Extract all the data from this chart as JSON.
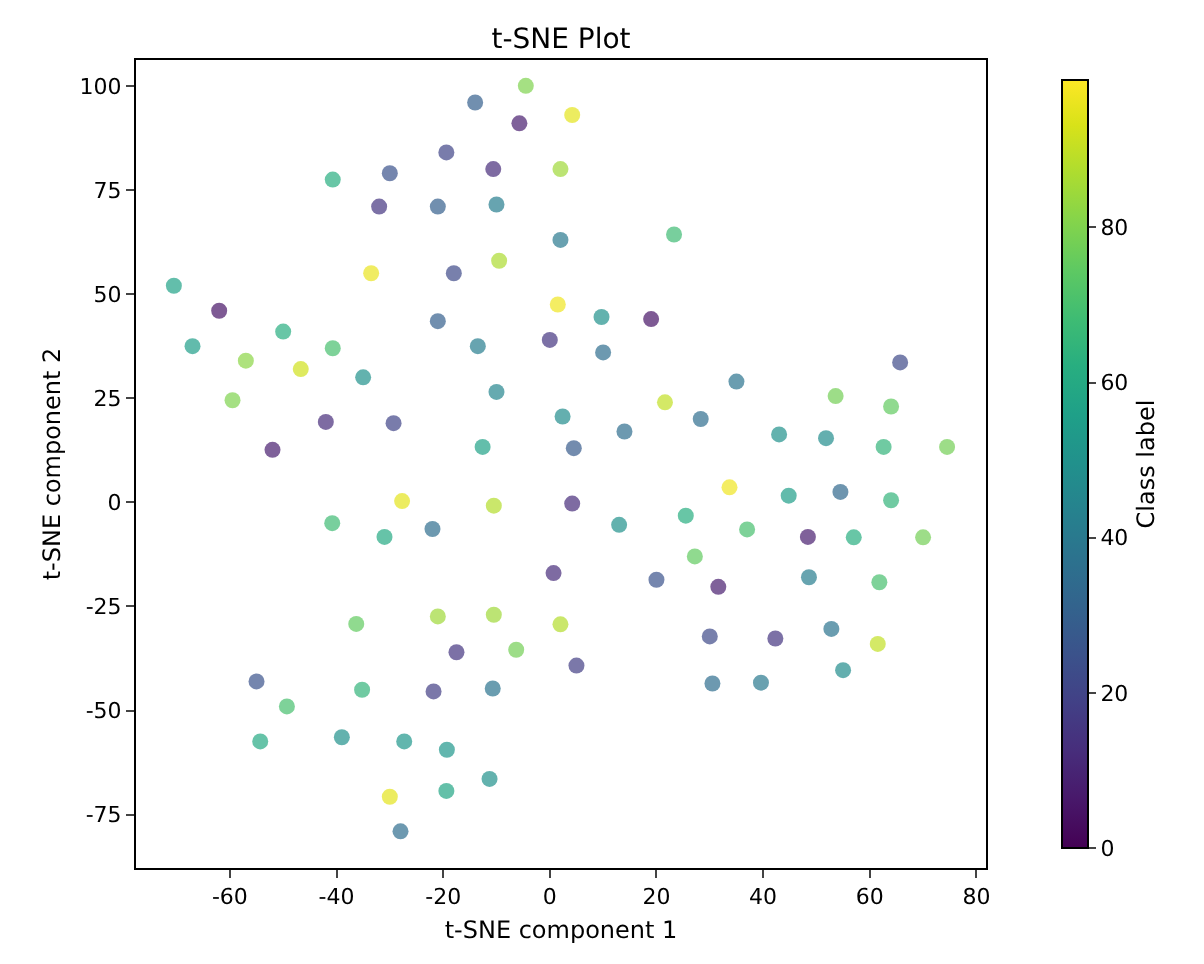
{
  "chart_data": {
    "type": "scatter",
    "title": "t-SNE Plot",
    "xlabel": "t-SNE component 1",
    "ylabel": "t-SNE component 2",
    "clabel": "Class label",
    "marker": "circle",
    "x": [
      -4.5,
      -14,
      -5.7,
      -19.4,
      -10.6,
      -30,
      -40.7,
      2,
      -32,
      -21,
      -10,
      2,
      -33.5,
      -18,
      -9.5,
      -70.5,
      -62,
      1.5,
      -50,
      -67,
      -40.7,
      -21,
      -13.5,
      0,
      -57,
      -46.7,
      -35,
      -10,
      -59.5,
      -42,
      -29.3,
      -52,
      -12.6,
      2.4,
      4.2,
      23.3,
      9.7,
      19,
      10,
      65.7,
      35,
      53.6,
      64,
      21.6,
      28.3,
      4.5,
      14,
      43,
      51.8,
      62.6,
      74.5,
      33.7,
      44.8,
      54.5,
      64,
      4.2,
      13,
      25.5,
      37,
      48.4,
      57,
      70,
      27.2,
      0.7,
      20,
      31.6,
      48.6,
      61.8,
      2,
      30,
      42.3,
      52.8,
      61.5,
      5,
      30.5,
      39.6,
      55,
      -27.7,
      -10.5,
      -40.8,
      -31,
      -22,
      -36.3,
      -21,
      -10.5,
      -17.5,
      -6.3,
      -55,
      -49.3,
      -35.2,
      -21.8,
      -10.7,
      -54.3,
      -39,
      -27.3,
      -19.3,
      -11.3,
      -19.4,
      -30,
      -28
    ],
    "values": [
      100,
      96,
      91,
      84,
      80,
      79,
      77.5,
      80,
      71,
      71,
      71.5,
      63,
      55,
      55,
      58,
      52,
      46,
      47.5,
      41,
      37.5,
      37,
      43.5,
      37.5,
      39,
      34,
      32,
      30,
      26.5,
      24.5,
      19.3,
      19,
      12.6,
      13.3,
      20.6,
      93,
      64.3,
      44.5,
      44,
      36,
      33.6,
      29,
      25.5,
      23,
      24,
      20,
      13,
      17,
      16.3,
      15.4,
      13.3,
      13.3,
      3.6,
      1.6,
      2.5,
      0.5,
      -0.3,
      -5.4,
      -3.2,
      -6.5,
      -8.3,
      -8.4,
      -8.4,
      -13,
      -17,
      -18.6,
      -20.3,
      -18,
      -19.2,
      -29.3,
      -32.2,
      -32.7,
      -30.4,
      -34,
      -39.2,
      -43.5,
      -43.3,
      -40.3,
      0.3,
      -0.8,
      -5,
      -8.3,
      -6.4,
      -29.2,
      -27.4,
      -27,
      -36,
      -35.4,
      -43,
      -49,
      -45,
      -45.4,
      -44.7,
      -57.4,
      -56.4,
      -57.4,
      -59.4,
      -66.4,
      -69.3,
      -70.7,
      -79
    ],
    "cvalues": [
      80,
      30,
      8,
      20,
      12,
      25,
      62,
      85,
      15,
      30,
      42,
      40,
      96,
      22,
      87,
      57,
      5,
      97,
      62,
      55,
      70,
      30,
      42,
      15,
      82,
      92,
      50,
      45,
      80,
      12,
      20,
      8,
      57,
      48,
      95,
      68,
      50,
      5,
      35,
      22,
      38,
      78,
      75,
      90,
      35,
      28,
      35,
      50,
      48,
      65,
      78,
      97,
      55,
      33,
      65,
      12,
      50,
      62,
      70,
      8,
      62,
      78,
      75,
      12,
      25,
      8,
      42,
      70,
      88,
      22,
      15,
      38,
      90,
      18,
      35,
      40,
      48,
      95,
      88,
      68,
      60,
      35,
      75,
      85,
      85,
      15,
      78,
      25,
      70,
      65,
      18,
      38,
      60,
      50,
      52,
      52,
      50,
      58,
      95,
      35
    ],
    "xlim": [
      -77.6,
      81.8
    ],
    "ylim": [
      -87.8,
      106.2
    ],
    "xticks": [
      -60,
      -40,
      -20,
      0,
      20,
      40,
      60,
      80
    ],
    "yticks": [
      -75,
      -50,
      -25,
      0,
      25,
      50,
      75,
      100
    ],
    "clim": [
      0,
      99
    ],
    "cticks": [
      0,
      20,
      40,
      60,
      80
    ],
    "grid": false
  }
}
